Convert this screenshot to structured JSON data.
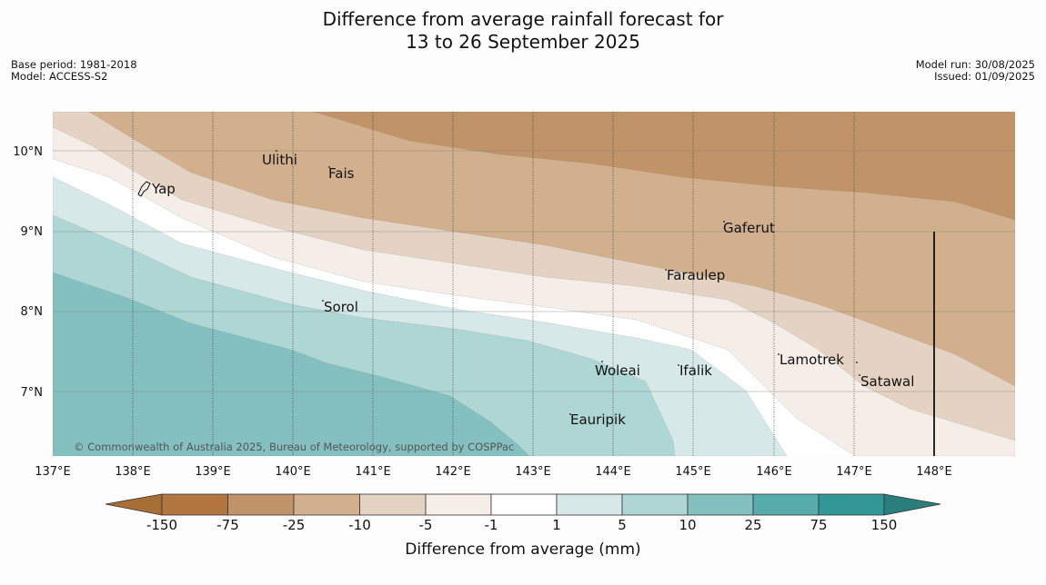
{
  "title_line1": "Difference from average rainfall forecast for",
  "title_line2": "13 to 26 September 2025",
  "base_period": "Base period: 1981-2018",
  "model": "Model: ACCESS-S2",
  "model_run": "Model run: 30/08/2025",
  "issued": "Issued: 01/09/2025",
  "copyright": "© Commonwealth of Australia 2025, Bureau of Meteorology, supported by COSPPac",
  "lon_labels": [
    "137°E",
    "138°E",
    "139°E",
    "140°E",
    "141°E",
    "142°E",
    "143°E",
    "144°E",
    "145°E",
    "146°E",
    "147°E",
    "148°E"
  ],
  "lat_labels": [
    "10°N",
    "9°N",
    "8°N",
    "7°N"
  ],
  "places": [
    {
      "name": "Yap"
    },
    {
      "name": "Ulithi"
    },
    {
      "name": "Fais"
    },
    {
      "name": "Gaferut"
    },
    {
      "name": "Faraulep"
    },
    {
      "name": "Sorol"
    },
    {
      "name": "Woleai"
    },
    {
      "name": "Ifalik"
    },
    {
      "name": "Lamotrek"
    },
    {
      "name": "Satawal"
    },
    {
      "name": "Eauripik"
    }
  ],
  "legend": {
    "title": "Difference from average (mm)",
    "ticks": [
      "-150",
      "-75",
      "-25",
      "-10",
      "-5",
      "-1",
      "1",
      "5",
      "10",
      "25",
      "75",
      "150"
    ],
    "colors": [
      "#a86f35",
      "#b27640",
      "#c09468",
      "#d2b08e",
      "#e4d3c3",
      "#f4ede8",
      "#ffffff",
      "#d6e9e8",
      "#add6d5",
      "#84c0bf",
      "#58abab",
      "#329796",
      "#2a7f7d"
    ]
  }
}
